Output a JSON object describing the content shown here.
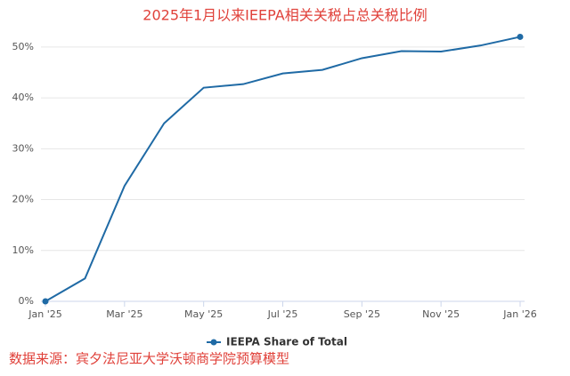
{
  "chart_data": {
    "type": "line",
    "title": "2025年1月以来IEEPA相关关税占总关税比例",
    "source": "数据来源：宾夕法尼亚大学沃顿商学院预算模型",
    "categories": [
      "Jan '25",
      null,
      "Mar '25",
      null,
      "May '25",
      null,
      "Jul '25",
      null,
      "Sep '25",
      null,
      "Nov '25",
      null,
      "Jan '26"
    ],
    "series": [
      {
        "name": "IEEPA Share of Total",
        "color": "#1f6aa5",
        "values": [
          0,
          4.5,
          22.7,
          35,
          42,
          42.7,
          44.8,
          45.5,
          47.8,
          49.2,
          49.1,
          50.3,
          52
        ]
      }
    ],
    "ylim": [
      0,
      54
    ],
    "yticks": [
      {
        "value": 0,
        "label": "0%"
      },
      {
        "value": 10,
        "label": "10%"
      },
      {
        "value": 20,
        "label": "20%"
      },
      {
        "value": 30,
        "label": "30%"
      },
      {
        "value": 40,
        "label": "40%"
      },
      {
        "value": 50,
        "label": "50%"
      }
    ],
    "grid": true
  }
}
